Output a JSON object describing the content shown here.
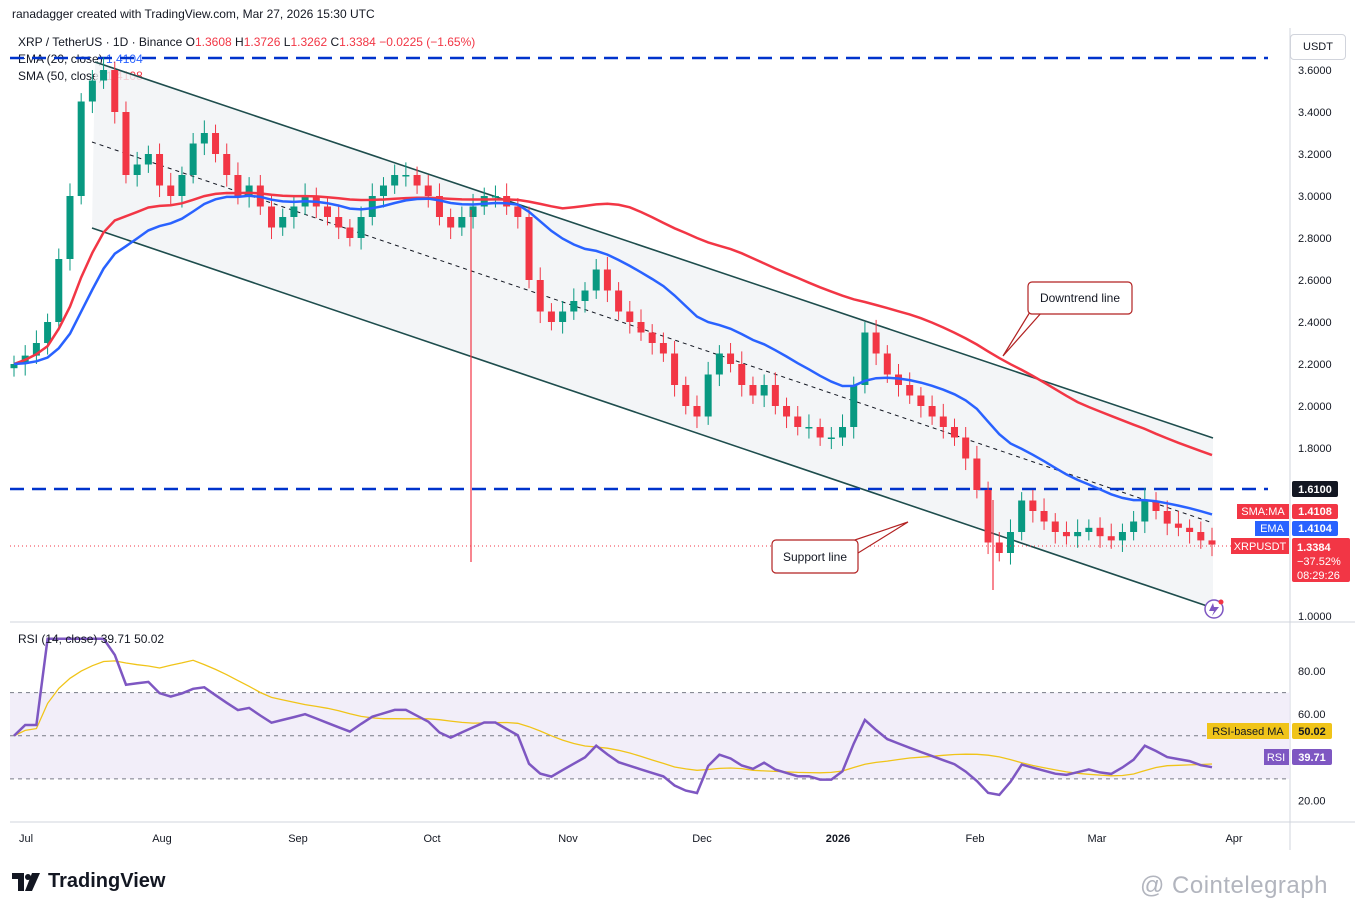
{
  "header": {
    "attribution": "ranadagger created with TradingView.com, Mar 27, 2026 15:30 UTC"
  },
  "symbol": {
    "name": "XRP / TetherUS · 1D · Binance",
    "open_label": "O",
    "open": "1.3608",
    "high_label": "H",
    "high": "1.3726",
    "low_label": "L",
    "low": "1.3262",
    "close_label": "C",
    "close": "1.3384",
    "change": "−0.0225 (−1.65%)"
  },
  "indicators": {
    "ema_label": "EMA (20, close)",
    "ema_value": "1.4104",
    "sma_label": "SMA (50, close)",
    "sma_value": "1.4108",
    "rsi_label": "RSI (14, close)",
    "rsi_value": "39.71",
    "rsi_ma_value": "50.02"
  },
  "currency": "USDT",
  "price_axis": {
    "ticks": [
      "3.6000",
      "3.4000",
      "3.2000",
      "3.0000",
      "2.8000",
      "2.6000",
      "2.4000",
      "2.2000",
      "2.0000",
      "1.8000",
      "1.0000"
    ],
    "tick_values": [
      3.6,
      3.4,
      3.2,
      3.0,
      2.8,
      2.6,
      2.4,
      2.2,
      2.0,
      1.8,
      1.0
    ]
  },
  "price_labels": {
    "resistance": "1.6100",
    "sma_tag": "SMA:MA",
    "sma_value": "1.4108",
    "ema_tag": "EMA",
    "ema_value": "1.4104",
    "symbol_tag": "XRPUSDT",
    "last_price": "1.3384",
    "last_change": "−37.52%",
    "countdown": "08:29:26"
  },
  "rsi_axis": {
    "ticks": [
      "80.00",
      "60.00",
      "20.00"
    ],
    "tick_values": [
      80,
      60,
      20
    ],
    "rsi_ma_tag": "RSI-based MA",
    "rsi_ma_value": "50.02",
    "rsi_tag": "RSI",
    "rsi_value": "39.71"
  },
  "time_axis": {
    "labels": [
      "Jul",
      "Aug",
      "Sep",
      "Oct",
      "Nov",
      "Dec",
      "2026",
      "Feb",
      "Mar",
      "Apr"
    ]
  },
  "annotations": {
    "downtrend": "Downtrend line",
    "support": "Support line"
  },
  "footer": {
    "logo": "TradingView",
    "watermark": "@ Cointelegraph"
  },
  "colors": {
    "up": "#089981",
    "down": "#f23645",
    "ema": "#2962ff",
    "sma": "#f23645",
    "channel": "#1e4d4d",
    "resistance": "#0033cc",
    "rsi": "#7e57c2",
    "rsi_ma": "#f0c419"
  },
  "chart_data": {
    "type": "candlestick",
    "symbol": "XRP / TetherUS",
    "timeframe": "1D",
    "y_unit": "USDT",
    "ylim": [
      0.95,
      3.7
    ],
    "x_months": [
      "Jul",
      "Aug",
      "Sep",
      "Oct",
      "Nov",
      "Dec",
      "2026",
      "Feb",
      "Mar",
      "Apr"
    ],
    "resistance_levels": [
      3.65,
      1.61
    ],
    "ohlc_last": {
      "open": 1.3608,
      "high": 1.3726,
      "low": 1.3262,
      "close": 1.3384
    },
    "close_series": [
      2.2,
      2.24,
      2.3,
      2.4,
      2.7,
      3.0,
      3.45,
      3.55,
      3.6,
      3.4,
      3.1,
      3.15,
      3.2,
      3.05,
      3.0,
      3.1,
      3.25,
      3.3,
      3.2,
      3.1,
      3.0,
      3.05,
      2.95,
      2.85,
      2.9,
      2.95,
      3.0,
      2.95,
      2.9,
      2.85,
      2.8,
      2.9,
      3.0,
      3.05,
      3.1,
      3.1,
      3.05,
      3.0,
      2.9,
      2.85,
      2.9,
      2.95,
      3.0,
      3.0,
      2.95,
      2.9,
      2.6,
      2.45,
      2.4,
      2.45,
      2.5,
      2.55,
      2.65,
      2.55,
      2.45,
      2.4,
      2.35,
      2.3,
      2.25,
      2.1,
      2.0,
      1.95,
      2.15,
      2.25,
      2.2,
      2.1,
      2.05,
      2.1,
      2.0,
      1.95,
      1.9,
      1.9,
      1.85,
      1.85,
      1.9,
      2.1,
      2.35,
      2.25,
      2.15,
      2.1,
      2.05,
      2.0,
      1.95,
      1.9,
      1.85,
      1.75,
      1.6,
      1.35,
      1.3,
      1.4,
      1.55,
      1.5,
      1.45,
      1.4,
      1.38,
      1.4,
      1.42,
      1.38,
      1.36,
      1.4,
      1.45,
      1.55,
      1.5,
      1.44,
      1.42,
      1.4,
      1.36,
      1.34
    ],
    "ema20_last": 1.4104,
    "sma50_last": 1.4108,
    "rsi": {
      "ylim": [
        10,
        100
      ],
      "levels": [
        70,
        50,
        30
      ],
      "last": 39.71,
      "ma_last": 50.02
    }
  }
}
